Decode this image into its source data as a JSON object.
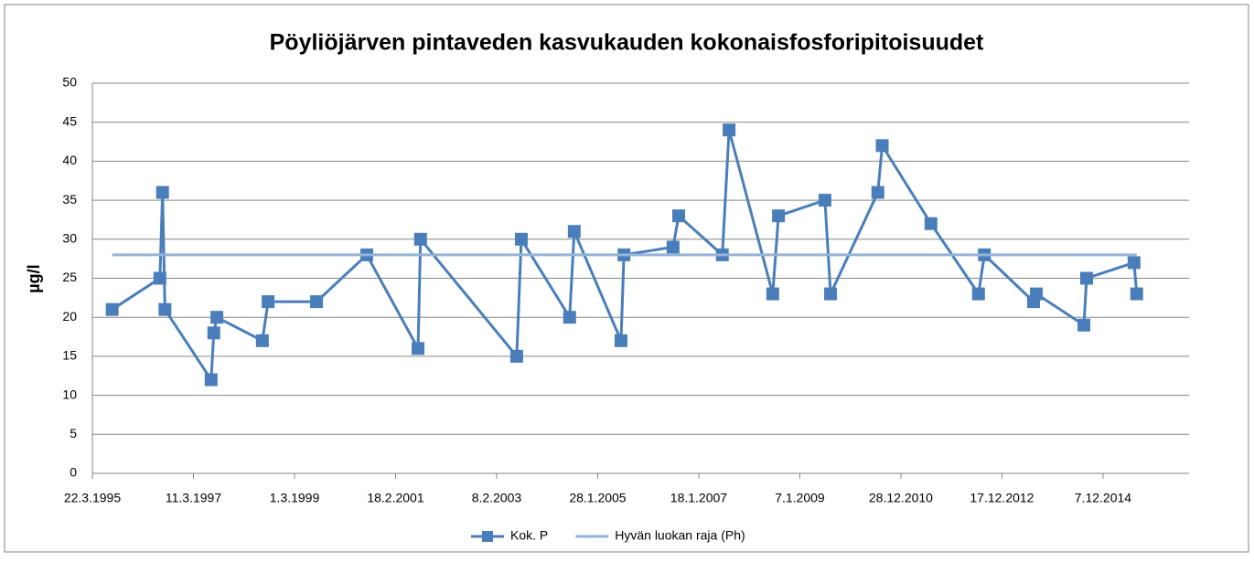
{
  "chart_data": {
    "type": "line",
    "title": "Pöyliöjärven pintaveden kasvukauden kokonaisfosforipitoisuudet",
    "y_label": "µg/l",
    "xlim": [
      "22.3.1995",
      "11.8.2016"
    ],
    "xticks": [
      "22.3.1995",
      "11.3.1997",
      "1.3.1999",
      "18.2.2001",
      "8.2.2003",
      "28.1.2005",
      "18.1.2007",
      "7.1.2009",
      "28.12.2010",
      "17.12.2012",
      "7.12.2014"
    ],
    "ylim": [
      0,
      50
    ],
    "yticks": [
      0,
      5,
      10,
      15,
      20,
      25,
      30,
      35,
      40,
      45,
      50
    ],
    "grid": true,
    "legend": "bottom",
    "series": [
      {
        "name": "Kok. P",
        "color": "#4a7ebb",
        "marker": "square",
        "x": [
          "10.8.1995",
          "15.7.1996",
          "3.8.1996",
          "20.8.1996",
          "15.7.1997",
          "3.8.1997",
          "25.8.1997",
          "15.7.1998",
          "25.8.1998",
          "5.8.1999",
          "28.7.2000",
          "28.7.2001",
          "15.8.2001",
          "1.7.2003",
          "3.8.2003",
          "12.7.2004",
          "14.8.2004",
          "13.7.2005",
          "3.8.2005",
          "19.7.2006",
          "28.8.2006",
          "5.7.2007",
          "22.8.2007",
          "28.6.2008",
          "8.8.2008",
          "5.7.2009",
          "14.8.2009",
          "17.7.2010",
          "17.8.2010",
          "30.7.2011",
          "3.7.2012",
          "14.8.2012",
          "30.7.2013",
          "19.8.2013",
          "24.7.2014",
          "12.8.2014",
          "16.7.2015",
          "4.8.2015"
        ],
        "values": [
          21,
          25,
          36,
          21,
          12,
          18,
          20,
          17,
          22,
          22,
          28,
          16,
          30,
          15,
          30,
          20,
          31,
          17,
          28,
          29,
          33,
          28,
          44,
          23,
          33,
          35,
          23,
          36,
          42,
          32,
          23,
          28,
          22,
          23,
          19,
          25,
          27,
          23
        ]
      },
      {
        "name": "Hyvän luokan raja (Ph)",
        "color": "#95b3d7",
        "x": [
          "10.8.1995",
          "4.8.2015"
        ],
        "values": [
          28,
          28
        ]
      }
    ]
  }
}
